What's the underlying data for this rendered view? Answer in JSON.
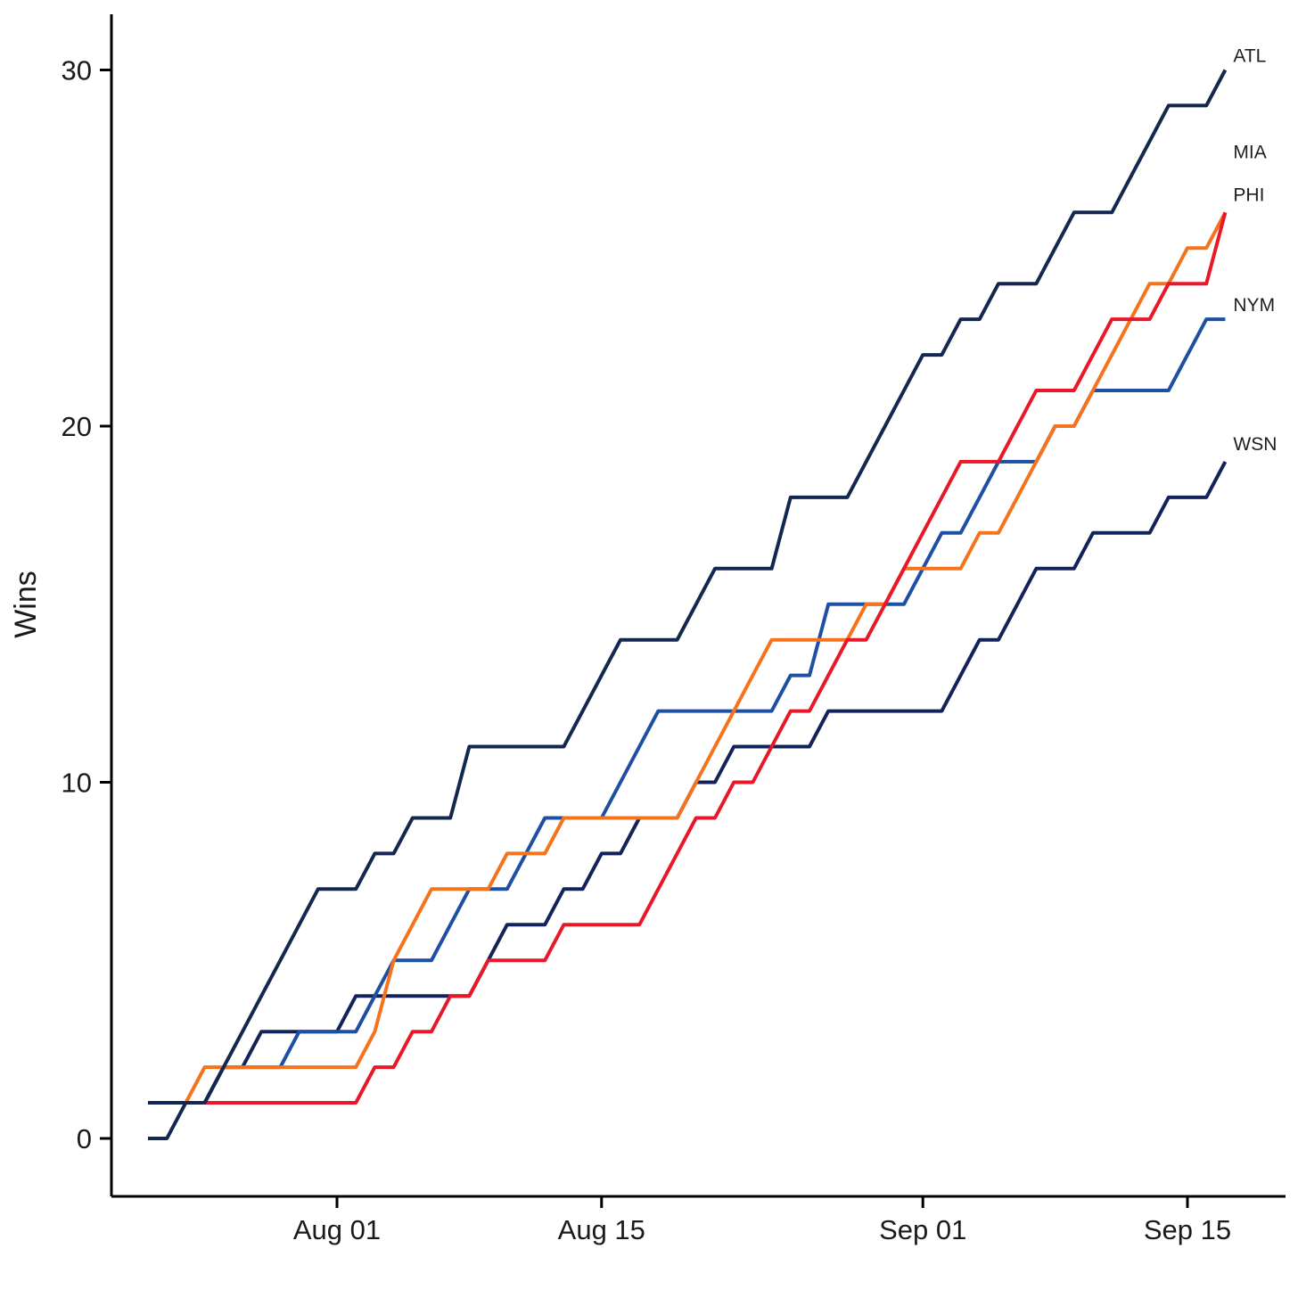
{
  "chart_data": {
    "type": "line",
    "subtype": "cumulative-wins-step",
    "title": "",
    "xlabel": "",
    "ylabel": "Wins",
    "grid": false,
    "legend_position": "end-of-line-labels",
    "y_ticks": [
      0,
      10,
      20,
      30
    ],
    "ylim": [
      -2,
      31.5
    ],
    "x_tick_labels": [
      "Aug 01",
      "Aug 15",
      "Sep 01",
      "Sep 15"
    ],
    "x_tick_day_index": [
      10,
      24,
      41,
      55
    ],
    "dates": [
      "Jul 22",
      "Jul 23",
      "Jul 24",
      "Jul 25",
      "Jul 26",
      "Jul 27",
      "Jul 28",
      "Jul 29",
      "Jul 30",
      "Jul 31",
      "Aug 1",
      "Aug 2",
      "Aug 3",
      "Aug 4",
      "Aug 5",
      "Aug 6",
      "Aug 7",
      "Aug 8",
      "Aug 9",
      "Aug 10",
      "Aug 11",
      "Aug 12",
      "Aug 13",
      "Aug 14",
      "Aug 15",
      "Aug 16",
      "Aug 17",
      "Aug 18",
      "Aug 19",
      "Aug 20",
      "Aug 21",
      "Aug 22",
      "Aug 23",
      "Aug 24",
      "Aug 25",
      "Aug 26",
      "Aug 27",
      "Aug 28",
      "Aug 29",
      "Aug 30",
      "Aug 31",
      "Sep 1",
      "Sep 2",
      "Sep 3",
      "Sep 4",
      "Sep 5",
      "Sep 6",
      "Sep 7",
      "Sep 8",
      "Sep 9",
      "Sep 10",
      "Sep 11",
      "Sep 12",
      "Sep 13",
      "Sep 14",
      "Sep 15",
      "Sep 16",
      "Sep 17"
    ],
    "series": [
      {
        "name": "WSN",
        "label": "WSN",
        "color": "#14225A",
        "final_value": 19,
        "label_slot_wins": 19.5,
        "values": [
          1,
          1,
          1,
          1,
          2,
          2,
          3,
          3,
          3,
          3,
          3,
          4,
          4,
          4,
          4,
          4,
          4,
          4,
          5,
          6,
          6,
          6,
          7,
          7,
          8,
          8,
          9,
          9,
          9,
          10,
          10,
          11,
          11,
          11,
          11,
          11,
          12,
          12,
          12,
          12,
          12,
          12,
          12,
          13,
          14,
          14,
          15,
          16,
          16,
          16,
          17,
          17,
          17,
          17,
          18,
          18,
          18,
          19
        ]
      },
      {
        "name": "NYM",
        "label": "NYM",
        "color": "#1D4FA3",
        "final_value": 23,
        "label_slot_wins": 23.4,
        "values": [
          null,
          null,
          1,
          1,
          2,
          2,
          2,
          2,
          3,
          3,
          3,
          3,
          4,
          5,
          5,
          5,
          6,
          7,
          7,
          7,
          8,
          9,
          9,
          9,
          9,
          10,
          11,
          12,
          12,
          12,
          12,
          12,
          12,
          12,
          13,
          13,
          15,
          15,
          15,
          15,
          15,
          16,
          17,
          17,
          18,
          19,
          19,
          19,
          20,
          20,
          21,
          21,
          21,
          21,
          21,
          22,
          23,
          23
        ]
      },
      {
        "name": "MIA",
        "label": "MIA",
        "color": "#F4731C",
        "final_value": 26,
        "label_slot_wins": 27.7,
        "values": [
          null,
          null,
          1,
          2,
          2,
          2,
          2,
          2,
          2,
          2,
          2,
          2,
          3,
          5,
          6,
          7,
          7,
          7,
          7,
          8,
          8,
          8,
          9,
          9,
          9,
          9,
          9,
          9,
          9,
          10,
          11,
          12,
          13,
          14,
          14,
          14,
          14,
          14,
          15,
          15,
          16,
          16,
          16,
          16,
          17,
          17,
          18,
          19,
          20,
          20,
          21,
          22,
          23,
          24,
          24,
          25,
          25,
          26
        ]
      },
      {
        "name": "PHI",
        "label": "PHI",
        "color": "#E81828",
        "final_value": 26,
        "label_slot_wins": 26.5,
        "values": [
          null,
          null,
          null,
          1,
          1,
          1,
          1,
          1,
          1,
          1,
          1,
          1,
          2,
          2,
          3,
          3,
          4,
          4,
          5,
          5,
          5,
          5,
          6,
          6,
          6,
          6,
          6,
          7,
          8,
          9,
          9,
          10,
          10,
          11,
          12,
          12,
          13,
          14,
          14,
          15,
          16,
          17,
          18,
          19,
          19,
          19,
          20,
          21,
          21,
          21,
          22,
          23,
          23,
          23,
          24,
          24,
          24,
          26
        ]
      },
      {
        "name": "ATL",
        "label": "ATL",
        "color": "#13274F",
        "final_value": 30,
        "label_slot_wins": 30.4,
        "values": [
          0,
          0,
          1,
          1,
          2,
          3,
          4,
          5,
          6,
          7,
          7,
          7,
          8,
          8,
          9,
          9,
          9,
          11,
          11,
          11,
          11,
          11,
          11,
          12,
          13,
          14,
          14,
          14,
          14,
          15,
          16,
          16,
          16,
          16,
          18,
          18,
          18,
          18,
          19,
          20,
          21,
          22,
          22,
          23,
          23,
          24,
          24,
          24,
          25,
          26,
          26,
          26,
          27,
          28,
          29,
          29,
          29,
          30
        ]
      }
    ]
  }
}
